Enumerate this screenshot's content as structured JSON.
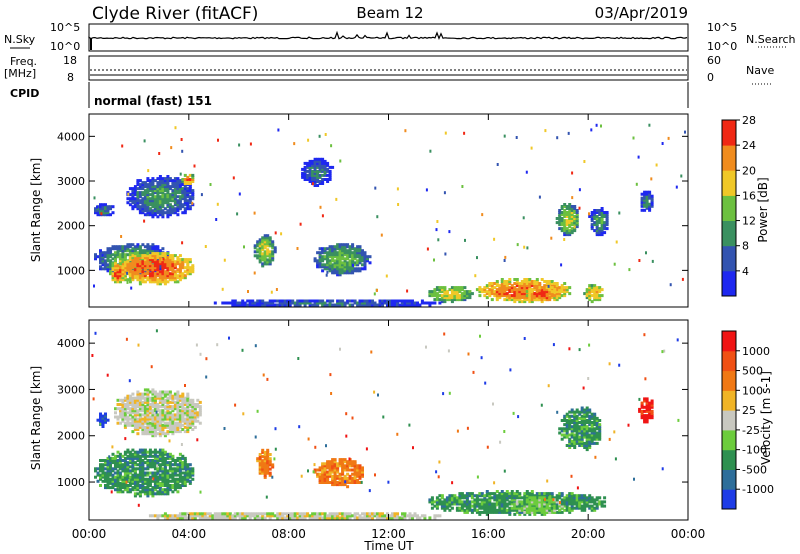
{
  "header": {
    "station": "Clyde River (fitACF)",
    "beam": "Beam 12",
    "date": "03/Apr/2019"
  },
  "noise_panel": {
    "left_label": "N.Sky",
    "right_label": "N.Search",
    "left_ticks": [
      "10^5",
      "10^0"
    ],
    "right_ticks": [
      "10^5",
      "10^0"
    ]
  },
  "freq_panel": {
    "left_label_1": "Freq.",
    "left_label_2": "[MHz]",
    "left_ticks": [
      "18",
      "8"
    ],
    "right_ticks": [
      "60",
      "0"
    ],
    "right_label": "Nave"
  },
  "cpid": {
    "label": "CPID",
    "value": "normal (fast) 151"
  },
  "x_axis": {
    "label": "Time UT",
    "ticks": [
      "00:00",
      "04:00",
      "08:00",
      "12:00",
      "16:00",
      "20:00",
      "00:00"
    ]
  },
  "chart_data": [
    {
      "type": "heatmap",
      "name": "Power",
      "ylabel": "Slant Range [km]",
      "yticks": [
        "1000",
        "2000",
        "3000",
        "4000"
      ],
      "ylim": [
        180,
        4500
      ],
      "xlim_hours": [
        0,
        24
      ],
      "colorbar": {
        "label": "Power [dB]",
        "ticks": [
          "4",
          "8",
          "12",
          "16",
          "20",
          "24",
          "28"
        ],
        "range": [
          0,
          30
        ]
      },
      "colors": [
        "#1e28f0",
        "#3354b0",
        "#3a9060",
        "#6cc040",
        "#f0c828",
        "#f08c1e",
        "#f02814"
      ],
      "blobs": [
        {
          "t0": 0.2,
          "t1": 3.2,
          "r0": 900,
          "r1": 1600,
          "p": 14
        },
        {
          "t0": 1.0,
          "t1": 4.2,
          "r0": 700,
          "r1": 1400,
          "p": 27
        },
        {
          "t0": 0.8,
          "t1": 1.4,
          "r0": 700,
          "r1": 1200,
          "p": 26
        },
        {
          "t0": 0.1,
          "t1": 1.0,
          "r0": 2200,
          "r1": 2500,
          "p": 10
        },
        {
          "t0": 1.5,
          "t1": 4.2,
          "r0": 2200,
          "r1": 3100,
          "p": 12
        },
        {
          "t0": 3.7,
          "t1": 4.2,
          "r0": 2900,
          "r1": 3150,
          "p": 24
        },
        {
          "t0": 6.6,
          "t1": 7.4,
          "r0": 1100,
          "r1": 1800,
          "p": 18
        },
        {
          "t0": 9.0,
          "t1": 11.2,
          "r0": 900,
          "r1": 1600,
          "p": 15
        },
        {
          "t0": 8.5,
          "t1": 9.7,
          "r0": 2900,
          "r1": 3500,
          "p": 10
        },
        {
          "t0": 13.5,
          "t1": 15.3,
          "r0": 300,
          "r1": 650,
          "p": 20
        },
        {
          "t0": 15.5,
          "t1": 19.3,
          "r0": 300,
          "r1": 800,
          "p": 27
        },
        {
          "t0": 17.5,
          "t1": 18.7,
          "r0": 300,
          "r1": 650,
          "p": 28
        },
        {
          "t0": 19.8,
          "t1": 20.6,
          "r0": 300,
          "r1": 700,
          "p": 22
        },
        {
          "t0": 18.7,
          "t1": 19.6,
          "r0": 1800,
          "r1": 2500,
          "p": 18
        },
        {
          "t0": 20.0,
          "t1": 20.8,
          "r0": 1800,
          "r1": 2400,
          "p": 12
        },
        {
          "t0": 22.0,
          "t1": 22.6,
          "r0": 2300,
          "r1": 2800,
          "p": 10
        },
        {
          "t0": 5.0,
          "t1": 14.0,
          "r0": 180,
          "r1": 350,
          "p": 9
        }
      ]
    },
    {
      "type": "heatmap",
      "name": "Velocity",
      "ylabel": "Slant Range [km]",
      "yticks": [
        "1000",
        "2000",
        "3000",
        "4000"
      ],
      "ylim": [
        180,
        4500
      ],
      "xlim_hours": [
        0,
        24
      ],
      "colorbar": {
        "label": "Velocity [m s-1]",
        "ticks": [
          "1000",
          "500",
          "100",
          "25",
          "-25",
          "-100",
          "-500",
          "-1000"
        ]
      },
      "colors": [
        "#1e3ce6",
        "#2e6e9a",
        "#2e9050",
        "#6ccc3c",
        "#c8c8c0",
        "#f0b426",
        "#f07814",
        "#f05014",
        "#f01414"
      ],
      "blobs": [
        {
          "t0": 0.2,
          "t1": 4.2,
          "r0": 700,
          "r1": 1700,
          "v": 2
        },
        {
          "t0": 0.3,
          "t1": 0.7,
          "r0": 2200,
          "r1": 2500,
          "v": 0
        },
        {
          "t0": 1.0,
          "t1": 4.5,
          "r0": 2000,
          "r1": 3000,
          "v": 4
        },
        {
          "t0": 6.7,
          "t1": 7.3,
          "r0": 1100,
          "r1": 1700,
          "v": 6
        },
        {
          "t0": 9.0,
          "t1": 11.0,
          "r0": 900,
          "r1": 1500,
          "v": 6
        },
        {
          "t0": 13.5,
          "t1": 20.7,
          "r0": 300,
          "r1": 800,
          "v": 2
        },
        {
          "t0": 17.0,
          "t1": 19.0,
          "r0": 300,
          "r1": 700,
          "v": 3
        },
        {
          "t0": 18.8,
          "t1": 20.5,
          "r0": 1700,
          "r1": 2600,
          "v": 2
        },
        {
          "t0": 22.0,
          "t1": 22.6,
          "r0": 2300,
          "r1": 2800,
          "v": 8
        },
        {
          "t0": 2.0,
          "t1": 14.0,
          "r0": 180,
          "r1": 350,
          "v": 4
        }
      ]
    }
  ]
}
